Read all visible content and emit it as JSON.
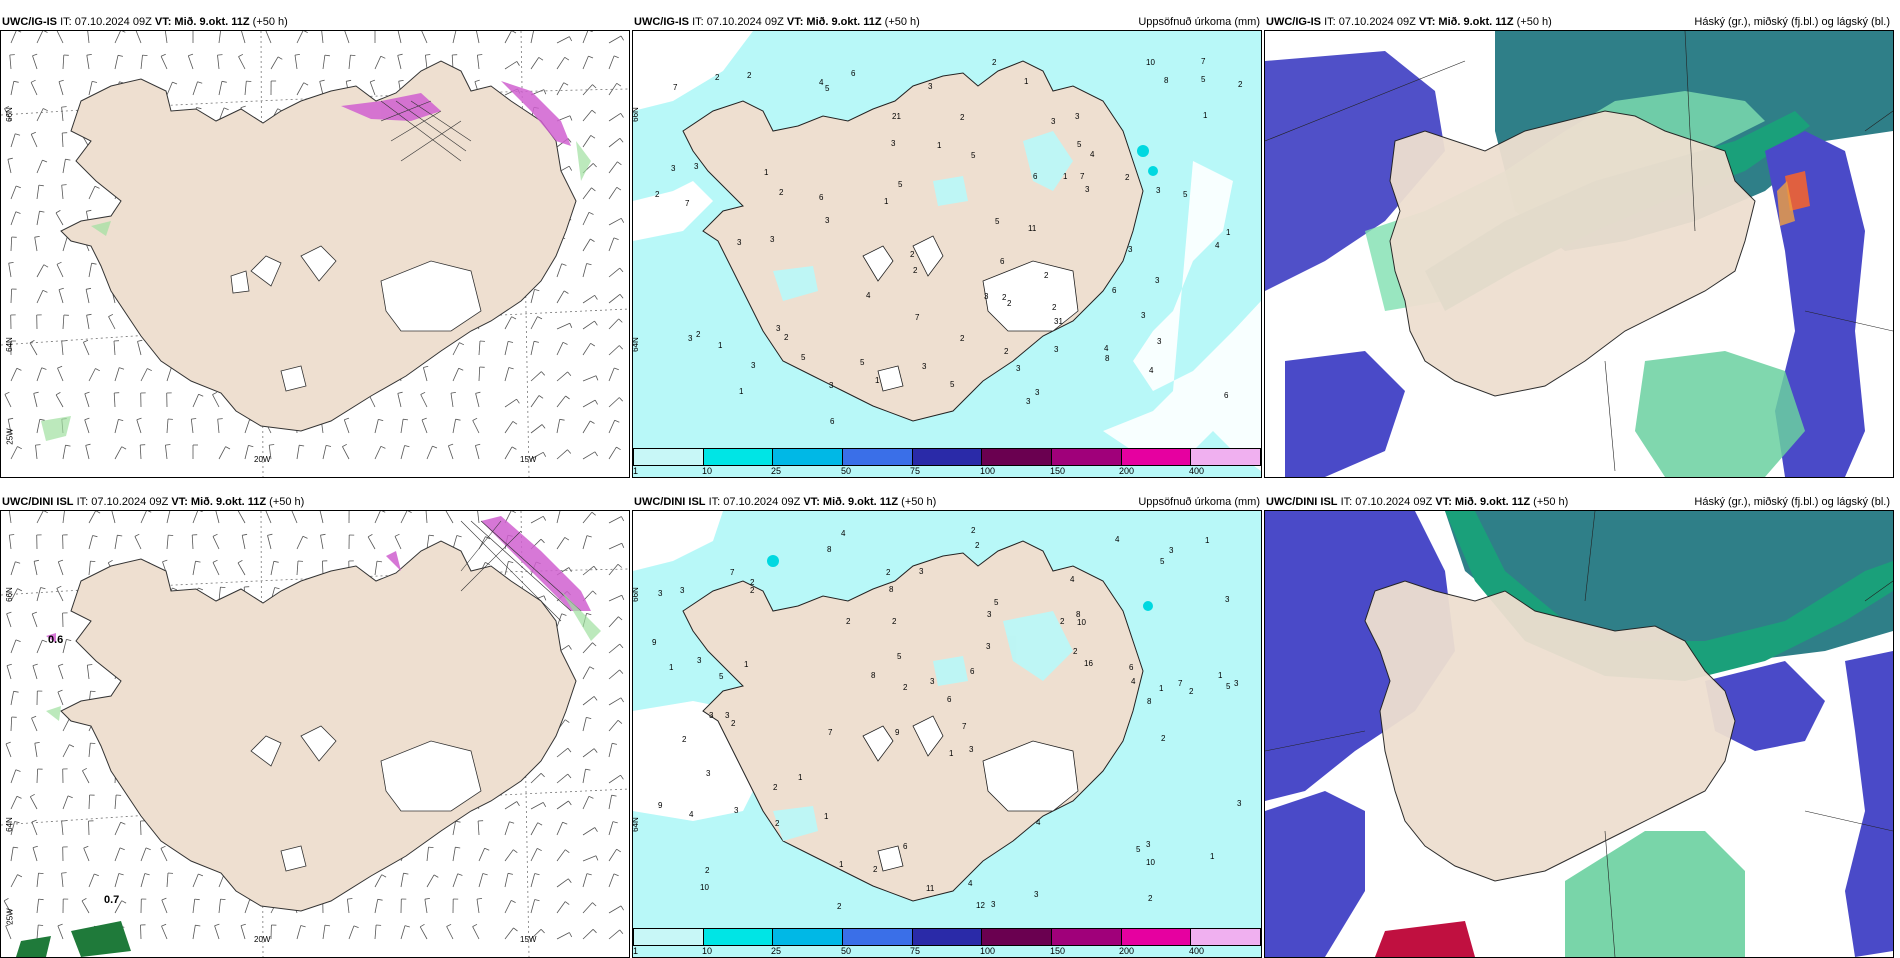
{
  "panels": [
    {
      "id": "tl",
      "model": "UWC/IG-IS",
      "it_label": "IT: 07.10.2024 09Z",
      "vt_label": "VT: Mið. 9.okt. 11Z",
      "lead": "(+50 h)",
      "right_title": ""
    },
    {
      "id": "tm",
      "model": "UWC/IG-IS",
      "it_label": "IT: 07.10.2024 09Z",
      "vt_label": "VT: Mið. 9.okt. 11Z",
      "lead": "(+50 h)",
      "right_title": "Uppsöfnuð úrkoma (mm)"
    },
    {
      "id": "tr",
      "model": "UWC/IG-IS",
      "it_label": "IT: 07.10.2024 09Z",
      "vt_label": "VT: Mið. 9.okt. 11Z",
      "lead": "(+50 h)",
      "right_title": "Háský (gr.), miðský (fj.bl.) og lágský (bl.)"
    },
    {
      "id": "bl",
      "model": "UWC/DINI ISL",
      "it_label": "IT: 07.10.2024 09Z",
      "vt_label": "VT: Mið. 9.okt. 11Z",
      "lead": "(+50 h)",
      "right_title": ""
    },
    {
      "id": "bm",
      "model": "UWC/DINI ISL",
      "it_label": "IT: 07.10.2024 09Z",
      "vt_label": "VT: Mið. 9.okt. 11Z",
      "lead": "(+50 h)",
      "right_title": "Uppsöfnuð úrkoma (mm)"
    },
    {
      "id": "br",
      "model": "UWC/DINI ISL",
      "it_label": "IT: 07.10.2024 09Z",
      "vt_label": "VT: Mið. 9.okt. 11Z",
      "lead": "(+50 h)",
      "right_title": "Háský (gr.), miðský (fj.bl.) og lágský (bl.)"
    }
  ],
  "axes": {
    "lat_top": "66N",
    "lat_bottom": "64N",
    "lon_west": "25W",
    "lon_mid": "20W",
    "lon_east": "15W"
  },
  "colorbar": {
    "labels": [
      "1",
      "10",
      "25",
      "50",
      "75",
      "100",
      "150",
      "200",
      "400"
    ],
    "colors": [
      "#c8f7f7",
      "#00e5e5",
      "#00b8e6",
      "#3a6fe8",
      "#2a2aa8",
      "#6a0050",
      "#a0007a",
      "#e600a0",
      "#f0b0f0"
    ]
  },
  "precip_values_top": [
    "3",
    "5",
    "2",
    "1",
    "2",
    "3",
    "4",
    "3",
    "2",
    "5",
    "1",
    "3",
    "2",
    "2",
    "3",
    "10",
    "7",
    "8",
    "6",
    "3",
    "4",
    "2",
    "3",
    "8",
    "11",
    "4",
    "3",
    "2",
    "5",
    "21",
    "31",
    "7",
    "3",
    "5",
    "6",
    "3",
    "2",
    "3",
    "1",
    "2",
    "3",
    "5",
    "2",
    "3",
    "1",
    "3",
    "3",
    "7",
    "6",
    "5",
    "4",
    "5",
    "6",
    "5",
    "7",
    "6",
    "4",
    "5",
    "6",
    "3",
    "2",
    "3",
    "7",
    "3",
    "4",
    "1",
    "2",
    "2",
    "3",
    "1",
    "5",
    "6",
    "3",
    "2",
    "1",
    "3",
    "3",
    "3",
    "1",
    "2",
    "1",
    "2",
    "3",
    "2",
    "3",
    "1",
    "2"
  ],
  "precip_values_bottom": [
    "4",
    "4",
    "5",
    "9",
    "3",
    "3",
    "3",
    "2",
    "2",
    "3",
    "6",
    "10",
    "8",
    "7",
    "12",
    "3",
    "6",
    "4",
    "16",
    "2",
    "5",
    "3",
    "3",
    "7",
    "9",
    "3",
    "2",
    "4",
    "3",
    "4",
    "5",
    "5",
    "3",
    "8",
    "4",
    "3",
    "6",
    "2",
    "1",
    "3",
    "2",
    "2",
    "3",
    "7",
    "11",
    "10",
    "10",
    "8",
    "9",
    "7",
    "8",
    "8",
    "6",
    "5",
    "2",
    "2",
    "5",
    "3",
    "3",
    "2",
    "1",
    "2",
    "2",
    "1",
    "1",
    "1",
    "1",
    "2",
    "2",
    "3",
    "3",
    "2",
    "1",
    "2",
    "3",
    "1",
    "1",
    "2",
    "2",
    "1",
    "2",
    "4",
    "2",
    "3"
  ],
  "wind_labels": {
    "bl_a": "0.6",
    "bl_b": "0.7"
  },
  "colors": {
    "land": "#eedfd0",
    "glacier": "#ffffff",
    "precip_light": "#b8f8f8",
    "precip_med": "#00d8e0",
    "ice_white": "#ffffff",
    "cloud_high": "#1aa07a",
    "cloud_mid": "#2f8f90",
    "cloud_low": "#4a4ac8"
  }
}
